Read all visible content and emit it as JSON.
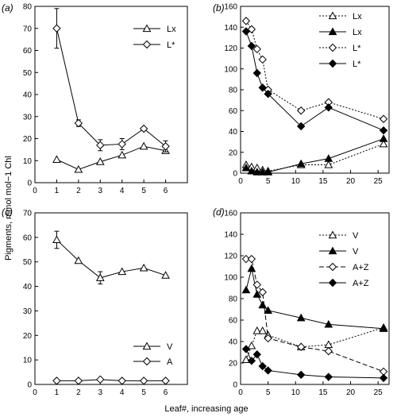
{
  "ylabel": "Pigments, mmol mol−1 Chl",
  "xlabel": "Leaf#, increasing age",
  "chart_data": [
    {
      "id": "a",
      "panel_label": "(a)",
      "type": "line",
      "xlim": [
        0,
        7
      ],
      "ylim": [
        0,
        80
      ],
      "xticks": [
        0,
        1,
        2,
        3,
        4,
        5,
        6
      ],
      "yticks": [
        0,
        10,
        20,
        30,
        40,
        50,
        60,
        70,
        80
      ],
      "legend_position": "top-right",
      "series": [
        {
          "name": "Lx",
          "marker": "triangle",
          "filled": false,
          "dash": "solid",
          "x": [
            1,
            2,
            3,
            4,
            5,
            6
          ],
          "y": [
            10.5,
            6,
            9.5,
            12.5,
            16.5,
            14.5
          ],
          "err": [
            0,
            0,
            0,
            0,
            0,
            0
          ]
        },
        {
          "name": "L*",
          "marker": "diamond",
          "filled": false,
          "dash": "solid",
          "x": [
            1,
            2,
            3,
            4,
            5,
            6
          ],
          "y": [
            70,
            27,
            17,
            17.5,
            24.5,
            16.5
          ],
          "err": [
            9,
            1.5,
            2.5,
            2.5,
            0,
            2.5
          ]
        }
      ]
    },
    {
      "id": "b",
      "panel_label": "(b)",
      "type": "line",
      "xlim": [
        0,
        27
      ],
      "ylim": [
        0,
        160
      ],
      "xticks": [
        0,
        5,
        10,
        15,
        20,
        25
      ],
      "yticks": [
        0,
        20,
        40,
        60,
        80,
        100,
        120,
        140,
        160
      ],
      "legend_position": "top-right",
      "series": [
        {
          "name": "Lx",
          "marker": "triangle",
          "filled": false,
          "dash": "dotted",
          "x": [
            1,
            2,
            3,
            4,
            5,
            11,
            16,
            26
          ],
          "y": [
            8,
            6,
            5,
            3,
            2,
            8,
            8,
            28
          ],
          "err": []
        },
        {
          "name": "Lx",
          "marker": "triangle",
          "filled": true,
          "dash": "solid",
          "x": [
            1,
            2,
            3,
            4,
            5,
            11,
            16,
            26
          ],
          "y": [
            5,
            2,
            1,
            1,
            1,
            9,
            14,
            33
          ],
          "err": []
        },
        {
          "name": "L*",
          "marker": "diamond",
          "filled": false,
          "dash": "dotted",
          "x": [
            1,
            2,
            3,
            4,
            5,
            11,
            16,
            26
          ],
          "y": [
            146,
            138,
            119,
            109,
            80,
            60,
            68,
            52
          ],
          "err": []
        },
        {
          "name": "L*",
          "marker": "diamond",
          "filled": true,
          "dash": "solid",
          "x": [
            1,
            2,
            3,
            4,
            5,
            11,
            16,
            26
          ],
          "y": [
            136,
            122,
            96,
            82,
            76,
            45,
            63,
            41
          ],
          "err": []
        }
      ]
    },
    {
      "id": "c",
      "panel_label": "(c)",
      "type": "line",
      "xlim": [
        0,
        7
      ],
      "ylim": [
        0,
        70
      ],
      "xticks": [
        0,
        1,
        2,
        3,
        4,
        5,
        6
      ],
      "yticks": [
        0,
        10,
        20,
        30,
        40,
        50,
        60,
        70
      ],
      "legend_position": "bottom-right",
      "series": [
        {
          "name": "V",
          "marker": "triangle",
          "filled": false,
          "dash": "solid",
          "x": [
            1,
            2,
            3,
            4,
            5,
            6
          ],
          "y": [
            59,
            50.5,
            43.5,
            46,
            47.5,
            44.5
          ],
          "err": [
            3.5,
            0,
            2.5,
            0,
            0,
            0
          ]
        },
        {
          "name": "A",
          "marker": "diamond",
          "filled": false,
          "dash": "solid",
          "x": [
            1,
            2,
            3,
            4,
            5,
            6
          ],
          "y": [
            1.5,
            1.5,
            2,
            1.5,
            1.5,
            1.5
          ],
          "err": [
            0,
            0,
            0,
            0,
            0,
            0
          ]
        }
      ]
    },
    {
      "id": "d",
      "panel_label": "(d)",
      "type": "line",
      "xlim": [
        0,
        27
      ],
      "ylim": [
        0,
        160
      ],
      "xticks": [
        0,
        5,
        10,
        15,
        20,
        25
      ],
      "yticks": [
        0,
        20,
        40,
        60,
        80,
        100,
        120,
        140,
        160
      ],
      "legend_position": "top-right",
      "series": [
        {
          "name": "V",
          "marker": "triangle",
          "filled": false,
          "dash": "dotted",
          "x": [
            1,
            2,
            3,
            4,
            5,
            11,
            16,
            26
          ],
          "y": [
            23,
            36,
            50,
            50,
            46,
            35,
            37,
            53
          ],
          "err": []
        },
        {
          "name": "V",
          "marker": "triangle",
          "filled": true,
          "dash": "solid",
          "x": [
            1,
            2,
            3,
            4,
            5,
            11,
            16,
            26
          ],
          "y": [
            88,
            108,
            84,
            74,
            69,
            62,
            56,
            52
          ],
          "err": []
        },
        {
          "name": "A+Z",
          "marker": "diamond",
          "filled": false,
          "dash": "dashed",
          "x": [
            1,
            2,
            3,
            4,
            5,
            11,
            16,
            26
          ],
          "y": [
            117,
            117,
            93,
            86,
            43,
            35,
            31,
            12
          ],
          "err": []
        },
        {
          "name": "A+Z",
          "marker": "diamond",
          "filled": true,
          "dash": "solid",
          "x": [
            1,
            2,
            3,
            4,
            5,
            11,
            16,
            26
          ],
          "y": [
            33,
            22,
            28,
            17,
            13,
            9,
            7,
            6
          ],
          "err": []
        }
      ]
    }
  ]
}
